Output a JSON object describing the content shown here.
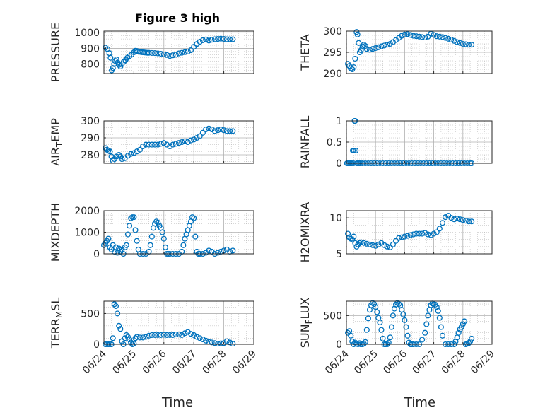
{
  "figure": {
    "title": "Figure 3 high",
    "marker_color": "#0072BD",
    "axis_color": "#262626",
    "grid_color": "#b0b0b0"
  },
  "chart_data": [
    {
      "type": "scatter",
      "ylabel": "PRESSURE",
      "ylim": [
        740,
        1010
      ],
      "yticks": [
        800,
        900,
        1000
      ],
      "xlim": [
        0,
        5
      ],
      "grid": true,
      "show_xticks": false,
      "x": [
        0.05,
        0.12,
        0.18,
        0.22,
        0.26,
        0.3,
        0.34,
        0.38,
        0.42,
        0.46,
        0.5,
        0.55,
        0.6,
        0.66,
        0.72,
        0.78,
        0.85,
        0.92,
        1.0,
        1.05,
        1.1,
        1.15,
        1.2,
        1.25,
        1.3,
        1.35,
        1.4,
        1.45,
        1.5,
        1.6,
        1.7,
        1.8,
        1.9,
        2.0,
        2.1,
        2.2,
        2.3,
        2.4,
        2.5,
        2.6,
        2.7,
        2.8,
        2.9,
        3.0,
        3.1,
        3.2,
        3.3,
        3.4,
        3.5,
        3.6,
        3.7,
        3.8,
        3.9,
        4.0,
        4.1,
        4.2,
        4.3
      ],
      "y": [
        905,
        895,
        870,
        840,
        760,
        775,
        800,
        820,
        830,
        810,
        795,
        785,
        800,
        815,
        825,
        840,
        850,
        860,
        875,
        885,
        883,
        880,
        878,
        876,
        875,
        874,
        873,
        872,
        872,
        871,
        870,
        868,
        866,
        862,
        858,
        852,
        856,
        860,
        868,
        872,
        876,
        880,
        888,
        910,
        928,
        942,
        952,
        957,
        950,
        955,
        958,
        960,
        962,
        960,
        958,
        958,
        958
      ],
      "name": ""
    },
    {
      "type": "scatter",
      "ylabel": "THETA",
      "ylim": [
        290,
        300
      ],
      "yticks": [
        290,
        295,
        300
      ],
      "xlim": [
        0,
        5
      ],
      "grid": true,
      "show_xticks": false,
      "x": [
        0.05,
        0.1,
        0.15,
        0.2,
        0.25,
        0.3,
        0.35,
        0.38,
        0.42,
        0.46,
        0.5,
        0.55,
        0.6,
        0.65,
        0.7,
        0.8,
        0.9,
        1.0,
        1.1,
        1.2,
        1.3,
        1.4,
        1.5,
        1.6,
        1.7,
        1.8,
        1.9,
        2.0,
        2.1,
        2.2,
        2.3,
        2.4,
        2.5,
        2.6,
        2.7,
        2.8,
        2.9,
        3.0,
        3.1,
        3.2,
        3.3,
        3.4,
        3.5,
        3.6,
        3.7,
        3.8,
        3.9,
        4.0,
        4.1,
        4.2,
        4.3
      ],
      "y": [
        292.3,
        291.8,
        291.2,
        291.0,
        291.5,
        293.5,
        299.8,
        299.2,
        297.2,
        295.0,
        295.5,
        296.3,
        296.8,
        296.5,
        295.8,
        295.6,
        295.8,
        296.0,
        296.2,
        296.4,
        296.6,
        296.8,
        297.0,
        297.4,
        297.9,
        298.4,
        298.9,
        299.2,
        299.3,
        299.1,
        298.9,
        298.8,
        298.7,
        298.6,
        298.5,
        298.7,
        299.4,
        299.1,
        298.8,
        298.7,
        298.6,
        298.4,
        298.2,
        298.0,
        297.7,
        297.4,
        297.2,
        297.0,
        296.9,
        296.8,
        296.8
      ],
      "name": ""
    },
    {
      "type": "scatter",
      "ylabel": "AIR_TEMP",
      "ylim": [
        275,
        300
      ],
      "yticks": [
        280,
        290,
        300
      ],
      "xlim": [
        0,
        5
      ],
      "grid": true,
      "show_xticks": false,
      "x": [
        0.05,
        0.1,
        0.15,
        0.2,
        0.25,
        0.3,
        0.35,
        0.42,
        0.5,
        0.55,
        0.6,
        0.7,
        0.8,
        0.9,
        1.0,
        1.1,
        1.2,
        1.3,
        1.4,
        1.5,
        1.6,
        1.7,
        1.8,
        1.9,
        2.0,
        2.1,
        2.2,
        2.3,
        2.4,
        2.5,
        2.6,
        2.7,
        2.8,
        2.9,
        3.0,
        3.1,
        3.2,
        3.3,
        3.4,
        3.5,
        3.6,
        3.7,
        3.8,
        3.9,
        4.0,
        4.1,
        4.2,
        4.3
      ],
      "y": [
        284,
        283,
        282.5,
        282,
        279,
        276.5,
        277.5,
        279,
        280,
        279,
        277.5,
        278,
        279.5,
        280.5,
        281,
        282,
        283,
        285,
        286,
        286,
        286,
        286,
        286,
        286.5,
        287,
        286,
        285,
        286,
        286.5,
        287,
        287.5,
        288,
        287.5,
        288.5,
        289,
        290,
        291,
        293,
        295,
        295.5,
        295,
        294,
        294.5,
        295,
        294.5,
        294,
        294,
        294
      ],
      "name": ""
    },
    {
      "type": "scatter",
      "ylabel": "RAINFALL",
      "ylim": [
        0,
        1
      ],
      "yticks": [
        0,
        0.5,
        1
      ],
      "xlim": [
        0,
        5
      ],
      "grid": true,
      "show_xticks": false,
      "x": [
        0.02,
        0.06,
        0.1,
        0.14,
        0.18,
        0.22,
        0.24,
        0.26,
        0.28,
        0.3,
        0.32,
        0.36,
        0.4,
        0.44,
        0.48,
        0.55,
        0.65,
        0.75,
        0.85,
        0.95,
        1.05,
        1.15,
        1.25,
        1.35,
        1.45,
        1.55,
        1.65,
        1.75,
        1.85,
        1.95,
        2.05,
        2.15,
        2.25,
        2.35,
        2.45,
        2.55,
        2.65,
        2.75,
        2.85,
        2.95,
        3.05,
        3.15,
        3.25,
        3.35,
        3.45,
        3.55,
        3.65,
        3.75,
        3.85,
        3.95,
        4.05,
        4.15,
        4.25,
        4.3
      ],
      "y": [
        0,
        0,
        0,
        0,
        0,
        0.3,
        0,
        0.3,
        1.0,
        1.0,
        0.3,
        0,
        0,
        0,
        0,
        0,
        0,
        0,
        0,
        0,
        0,
        0,
        0,
        0,
        0,
        0,
        0,
        0,
        0,
        0,
        0,
        0,
        0,
        0,
        0,
        0,
        0,
        0,
        0,
        0,
        0,
        0,
        0,
        0,
        0,
        0,
        0,
        0,
        0,
        0,
        0,
        0,
        0,
        0
      ],
      "name": ""
    },
    {
      "type": "scatter",
      "ylabel": "MIXDEPTH",
      "ylim": [
        0,
        2000
      ],
      "yticks": [
        0,
        1000,
        2000
      ],
      "xlim": [
        0,
        5
      ],
      "grid": true,
      "show_xticks": false,
      "x": [
        0.0,
        0.05,
        0.1,
        0.15,
        0.2,
        0.25,
        0.3,
        0.35,
        0.4,
        0.45,
        0.5,
        0.55,
        0.6,
        0.65,
        0.7,
        0.75,
        0.8,
        0.85,
        0.9,
        0.95,
        1.0,
        1.05,
        1.1,
        1.15,
        1.2,
        1.3,
        1.4,
        1.5,
        1.55,
        1.6,
        1.65,
        1.7,
        1.75,
        1.8,
        1.85,
        1.9,
        1.95,
        2.0,
        2.05,
        2.1,
        2.15,
        2.2,
        2.3,
        2.4,
        2.5,
        2.6,
        2.65,
        2.7,
        2.75,
        2.8,
        2.85,
        2.9,
        2.95,
        3.0,
        3.05,
        3.1,
        3.15,
        3.2,
        3.3,
        3.4,
        3.5,
        3.6,
        3.7,
        3.8,
        3.9,
        4.0,
        4.1,
        4.2,
        4.3
      ],
      "y": [
        400,
        500,
        600,
        700,
        300,
        200,
        400,
        100,
        300,
        50,
        250,
        100,
        200,
        0,
        300,
        400,
        900,
        1300,
        1650,
        1700,
        1700,
        1100,
        600,
        200,
        0,
        0,
        0,
        100,
        400,
        800,
        1200,
        1400,
        1500,
        1450,
        1300,
        1200,
        1000,
        700,
        300,
        0,
        0,
        0,
        0,
        0,
        0,
        100,
        400,
        700,
        900,
        1100,
        1300,
        1500,
        1700,
        1650,
        800,
        100,
        0,
        0,
        0,
        50,
        150,
        100,
        0,
        50,
        100,
        150,
        200,
        100,
        150
      ],
      "name": ""
    },
    {
      "type": "scatter",
      "ylabel": "H2OMIXRA",
      "ylim": [
        5,
        11
      ],
      "yticks": [
        5,
        10
      ],
      "xlim": [
        0,
        5
      ],
      "grid": true,
      "show_xticks": false,
      "x": [
        0.05,
        0.1,
        0.15,
        0.2,
        0.25,
        0.3,
        0.35,
        0.4,
        0.45,
        0.5,
        0.6,
        0.7,
        0.8,
        0.9,
        1.0,
        1.1,
        1.2,
        1.3,
        1.4,
        1.5,
        1.6,
        1.7,
        1.8,
        1.9,
        2.0,
        2.1,
        2.2,
        2.3,
        2.4,
        2.5,
        2.6,
        2.7,
        2.8,
        2.9,
        3.0,
        3.1,
        3.2,
        3.3,
        3.4,
        3.5,
        3.6,
        3.7,
        3.8,
        3.9,
        4.0,
        4.1,
        4.2,
        4.3
      ],
      "y": [
        7.8,
        7.3,
        7.1,
        7.0,
        7.4,
        6.5,
        6.0,
        6.3,
        6.5,
        6.6,
        6.5,
        6.4,
        6.3,
        6.2,
        6.1,
        6.3,
        6.5,
        6.2,
        6.0,
        5.9,
        6.3,
        6.8,
        7.2,
        7.3,
        7.4,
        7.5,
        7.6,
        7.7,
        7.8,
        7.8,
        7.8,
        7.9,
        7.7,
        7.6,
        7.8,
        8.0,
        8.5,
        9.3,
        10.1,
        10.3,
        10.0,
        9.8,
        9.9,
        9.8,
        9.7,
        9.6,
        9.5,
        9.5
      ],
      "name": ""
    },
    {
      "type": "scatter",
      "ylabel": "TERR_MSL",
      "ylim": [
        0,
        700
      ],
      "yticks": [
        0,
        500
      ],
      "xlim": [
        0,
        5
      ],
      "grid": true,
      "show_xticks": true,
      "x": [
        0.05,
        0.1,
        0.15,
        0.2,
        0.25,
        0.3,
        0.35,
        0.4,
        0.45,
        0.5,
        0.55,
        0.6,
        0.65,
        0.7,
        0.75,
        0.8,
        0.85,
        0.9,
        0.95,
        1.0,
        1.05,
        1.1,
        1.2,
        1.3,
        1.4,
        1.5,
        1.6,
        1.7,
        1.8,
        1.9,
        2.0,
        2.1,
        2.2,
        2.3,
        2.4,
        2.5,
        2.6,
        2.7,
        2.8,
        2.9,
        3.0,
        3.1,
        3.2,
        3.3,
        3.4,
        3.5,
        3.6,
        3.7,
        3.8,
        3.9,
        4.0,
        4.1,
        4.2,
        4.3
      ],
      "y": [
        0,
        0,
        0,
        0,
        0,
        100,
        650,
        620,
        500,
        300,
        250,
        50,
        0,
        100,
        150,
        120,
        80,
        30,
        0,
        10,
        100,
        120,
        110,
        110,
        120,
        140,
        150,
        150,
        150,
        150,
        155,
        150,
        150,
        150,
        160,
        160,
        150,
        180,
        200,
        170,
        150,
        120,
        100,
        80,
        60,
        40,
        30,
        20,
        10,
        15,
        20,
        50,
        30,
        10
      ],
      "name": ""
    },
    {
      "type": "scatter",
      "ylabel": "SUN_FLUX",
      "ylim": [
        0,
        750
      ],
      "yticks": [
        0,
        500
      ],
      "xlim": [
        0,
        5
      ],
      "grid": true,
      "show_xticks": true,
      "x": [
        0.05,
        0.1,
        0.15,
        0.2,
        0.25,
        0.3,
        0.35,
        0.4,
        0.45,
        0.5,
        0.55,
        0.6,
        0.65,
        0.7,
        0.75,
        0.8,
        0.85,
        0.9,
        0.95,
        1.0,
        1.05,
        1.1,
        1.15,
        1.2,
        1.25,
        1.3,
        1.35,
        1.4,
        1.45,
        1.5,
        1.55,
        1.6,
        1.65,
        1.7,
        1.75,
        1.8,
        1.85,
        1.9,
        1.95,
        2.0,
        2.05,
        2.1,
        2.15,
        2.2,
        2.25,
        2.3,
        2.4,
        2.5,
        2.6,
        2.7,
        2.75,
        2.8,
        2.85,
        2.9,
        2.95,
        3.0,
        3.05,
        3.1,
        3.15,
        3.2,
        3.25,
        3.3,
        3.4,
        3.5,
        3.6,
        3.7,
        3.75,
        3.8,
        3.85,
        3.9,
        3.95,
        4.0,
        4.05,
        4.1,
        4.15,
        4.2,
        4.25,
        4.3
      ],
      "y": [
        200,
        230,
        150,
        50,
        0,
        30,
        10,
        0,
        20,
        0,
        0,
        10,
        40,
        250,
        450,
        600,
        680,
        720,
        700,
        650,
        560,
        460,
        380,
        250,
        100,
        0,
        0,
        0,
        30,
        120,
        300,
        500,
        620,
        690,
        720,
        700,
        680,
        600,
        520,
        420,
        300,
        150,
        30,
        0,
        0,
        0,
        0,
        0,
        80,
        200,
        350,
        500,
        600,
        680,
        710,
        700,
        690,
        650,
        580,
        460,
        300,
        150,
        0,
        0,
        0,
        0,
        50,
        120,
        200,
        260,
        300,
        350,
        400,
        0,
        10,
        20,
        50,
        100
      ],
      "name": ""
    }
  ],
  "xaxis": {
    "xlabel": "Time",
    "tick_labels": [
      "06/24",
      "06/25",
      "06/26",
      "06/27",
      "06/28",
      "06/29"
    ]
  }
}
